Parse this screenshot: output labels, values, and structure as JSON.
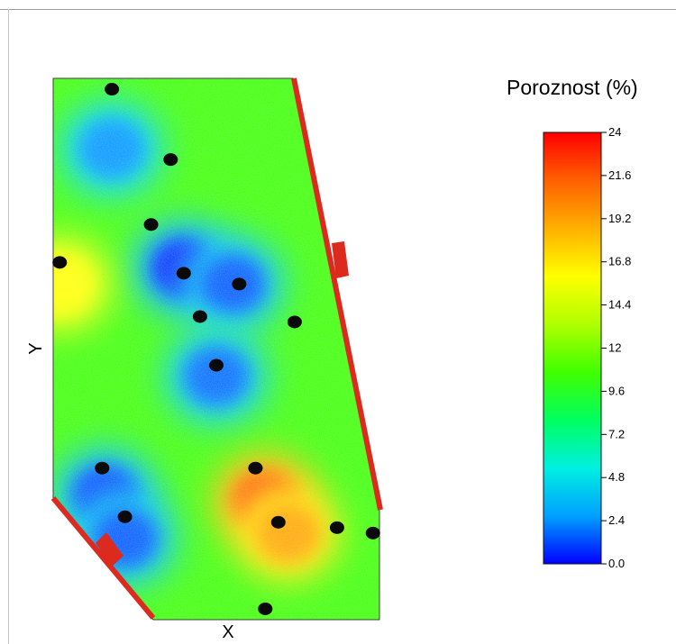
{
  "chart_data": {
    "type": "heatmap",
    "title": "Poroznost (%)",
    "xlabel": "X",
    "ylabel": "Y",
    "colorbar": {
      "min": 0,
      "max": 24,
      "ticks": [
        "24",
        "21.6",
        "19.2",
        "16.8",
        "14.4",
        "12",
        "9.6",
        "7.2",
        "4.8",
        "2.4",
        "0.0"
      ],
      "colors": [
        "#0000ff",
        "#00a0ff",
        "#00f0e0",
        "#00ff60",
        "#40ff00",
        "#b0ff00",
        "#ffff00",
        "#ffb000",
        "#ff6000",
        "#ff0000"
      ]
    },
    "porosity_field": [
      {
        "x": 0.18,
        "y": 0.13,
        "value": 2.5
      },
      {
        "x": 0.4,
        "y": 0.35,
        "value": 0.5
      },
      {
        "x": 0.55,
        "y": 0.38,
        "value": 1.5
      },
      {
        "x": 0.5,
        "y": 0.55,
        "value": 1.8
      },
      {
        "x": 0.16,
        "y": 0.77,
        "value": 1.0
      },
      {
        "x": 0.22,
        "y": 0.85,
        "value": 1.5
      },
      {
        "x": 0.65,
        "y": 0.78,
        "value": 22
      },
      {
        "x": 0.72,
        "y": 0.84,
        "value": 19
      },
      {
        "x": 0.02,
        "y": 0.38,
        "value": 16
      }
    ],
    "background_value": 10.5,
    "wells": [
      {
        "x": 0.18,
        "y": 0.02
      },
      {
        "x": 0.36,
        "y": 0.15
      },
      {
        "x": 0.3,
        "y": 0.27
      },
      {
        "x": 0.02,
        "y": 0.34
      },
      {
        "x": 0.4,
        "y": 0.36
      },
      {
        "x": 0.57,
        "y": 0.38
      },
      {
        "x": 0.45,
        "y": 0.44
      },
      {
        "x": 0.74,
        "y": 0.45
      },
      {
        "x": 0.5,
        "y": 0.53
      },
      {
        "x": 0.15,
        "y": 0.72
      },
      {
        "x": 0.62,
        "y": 0.72
      },
      {
        "x": 0.22,
        "y": 0.81
      },
      {
        "x": 0.69,
        "y": 0.82
      },
      {
        "x": 0.87,
        "y": 0.83
      },
      {
        "x": 0.98,
        "y": 0.84
      },
      {
        "x": 0.65,
        "y": 0.98
      }
    ]
  }
}
